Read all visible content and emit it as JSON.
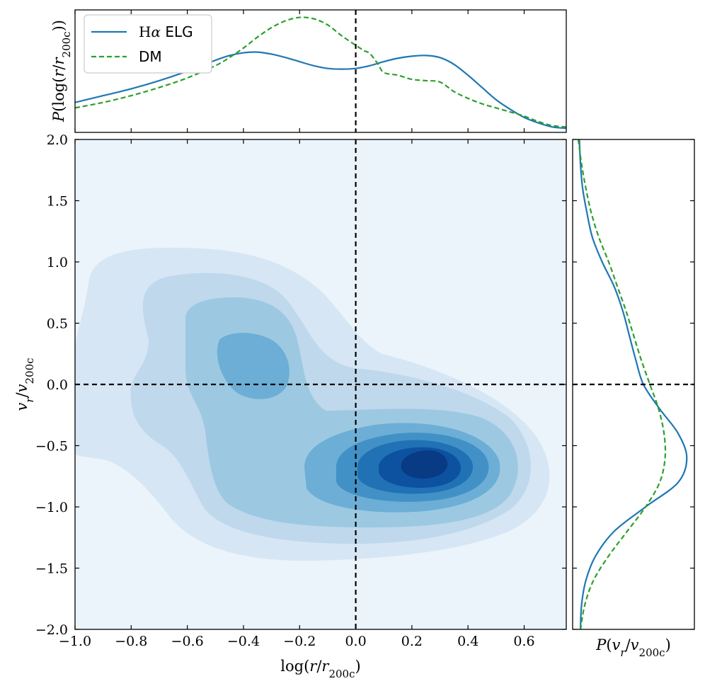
{
  "chart_data": [
    {
      "panel": "main",
      "type": "contour",
      "xlabel": "log(r/r_200c)",
      "ylabel": "v_r/v_200c",
      "xlim": [
        -1.0,
        0.75
      ],
      "ylim": [
        -2.0,
        2.0
      ],
      "xticks": [
        -1.0,
        -0.8,
        -0.6,
        -0.4,
        -0.2,
        0.0,
        0.2,
        0.4,
        0.6
      ],
      "xtick_labels": [
        "−1.0",
        "−0.8",
        "−0.6",
        "−0.4",
        "−0.2",
        "0.0",
        "0.2",
        "0.4",
        "0.6"
      ],
      "yticks": [
        -2.0,
        -1.5,
        -1.0,
        -0.5,
        0.0,
        0.5,
        1.0,
        1.5,
        2.0
      ],
      "ytick_labels": [
        "−2.0",
        "−1.5",
        "−1.0",
        "−0.5",
        "0.0",
        "0.5",
        "1.0",
        "1.5",
        "2.0"
      ],
      "reference_lines": {
        "vertical_x": 0.0,
        "horizontal_y": 0.0
      },
      "density_peaks": [
        {
          "x": 0.24,
          "y": -0.65,
          "level": "highest"
        },
        {
          "x": -0.38,
          "y": 0.1,
          "level": "secondary"
        }
      ],
      "contour_colors": [
        "#ebf3fb",
        "#d6e6f4",
        "#bfd8ec",
        "#9cc9e1",
        "#6daed6",
        "#4291c6",
        "#2171b5",
        "#0d52a0",
        "#083b83"
      ]
    },
    {
      "panel": "top",
      "type": "line",
      "ylabel": "P(log(r/r_200c))",
      "xlim": [
        -1.0,
        0.75
      ],
      "legend": {
        "position": "top-left",
        "entries": [
          {
            "label": "Hα ELG",
            "color": "#1f77b4",
            "style": "solid"
          },
          {
            "label": "DM",
            "color": "#2ca02c",
            "style": "dashed"
          }
        ]
      },
      "series": [
        {
          "name": "Hα ELG",
          "color": "#1f77b4",
          "x": [
            -1.0,
            -0.9,
            -0.8,
            -0.7,
            -0.6,
            -0.5,
            -0.45,
            -0.4,
            -0.35,
            -0.3,
            -0.25,
            -0.2,
            -0.15,
            -0.1,
            -0.05,
            0.0,
            0.05,
            0.1,
            0.15,
            0.2,
            0.25,
            0.3,
            0.35,
            0.4,
            0.45,
            0.5,
            0.55,
            0.6,
            0.65,
            0.7,
            0.75
          ],
          "y": [
            0.22,
            0.27,
            0.32,
            0.38,
            0.45,
            0.53,
            0.565,
            0.585,
            0.59,
            0.575,
            0.55,
            0.52,
            0.49,
            0.47,
            0.465,
            0.47,
            0.49,
            0.52,
            0.545,
            0.56,
            0.565,
            0.55,
            0.5,
            0.42,
            0.33,
            0.24,
            0.17,
            0.11,
            0.07,
            0.04,
            0.03
          ]
        },
        {
          "name": "DM",
          "color": "#2ca02c",
          "x": [
            -1.0,
            -0.9,
            -0.8,
            -0.7,
            -0.6,
            -0.5,
            -0.45,
            -0.4,
            -0.35,
            -0.3,
            -0.25,
            -0.2,
            -0.15,
            -0.1,
            -0.05,
            0.0,
            0.03,
            0.05,
            0.08,
            0.1,
            0.15,
            0.2,
            0.25,
            0.3,
            0.35,
            0.4,
            0.45,
            0.5,
            0.55,
            0.6,
            0.65,
            0.7,
            0.75
          ],
          "y": [
            0.18,
            0.22,
            0.27,
            0.33,
            0.4,
            0.49,
            0.55,
            0.62,
            0.7,
            0.77,
            0.82,
            0.845,
            0.835,
            0.79,
            0.71,
            0.64,
            0.6,
            0.58,
            0.5,
            0.44,
            0.42,
            0.39,
            0.38,
            0.37,
            0.3,
            0.25,
            0.21,
            0.18,
            0.15,
            0.12,
            0.08,
            0.05,
            0.04
          ]
        }
      ]
    },
    {
      "panel": "right",
      "type": "line",
      "xlabel": "P(v_r/v_200c)",
      "ylim": [
        -2.0,
        2.0
      ],
      "series": [
        {
          "name": "Hα ELG",
          "color": "#1f77b4",
          "y": [
            2.0,
            1.8,
            1.6,
            1.4,
            1.2,
            1.0,
            0.8,
            0.6,
            0.4,
            0.2,
            0.0,
            -0.2,
            -0.4,
            -0.6,
            -0.8,
            -1.0,
            -1.2,
            -1.4,
            -1.6,
            -1.8,
            -2.0
          ],
          "p": [
            0.01,
            0.02,
            0.04,
            0.08,
            0.13,
            0.22,
            0.33,
            0.41,
            0.47,
            0.53,
            0.6,
            0.75,
            0.92,
            1.0,
            0.92,
            0.62,
            0.33,
            0.16,
            0.07,
            0.03,
            0.02
          ]
        },
        {
          "name": "DM",
          "color": "#2ca02c",
          "y": [
            2.0,
            1.8,
            1.6,
            1.4,
            1.2,
            1.0,
            0.8,
            0.6,
            0.4,
            0.2,
            0.0,
            -0.2,
            -0.4,
            -0.6,
            -0.8,
            -1.0,
            -1.2,
            -1.4,
            -1.6,
            -1.8,
            -2.0
          ],
          "p": [
            0.0,
            0.03,
            0.07,
            0.12,
            0.19,
            0.28,
            0.36,
            0.44,
            0.51,
            0.58,
            0.66,
            0.74,
            0.79,
            0.8,
            0.75,
            0.62,
            0.45,
            0.28,
            0.14,
            0.06,
            0.02
          ]
        }
      ]
    }
  ]
}
